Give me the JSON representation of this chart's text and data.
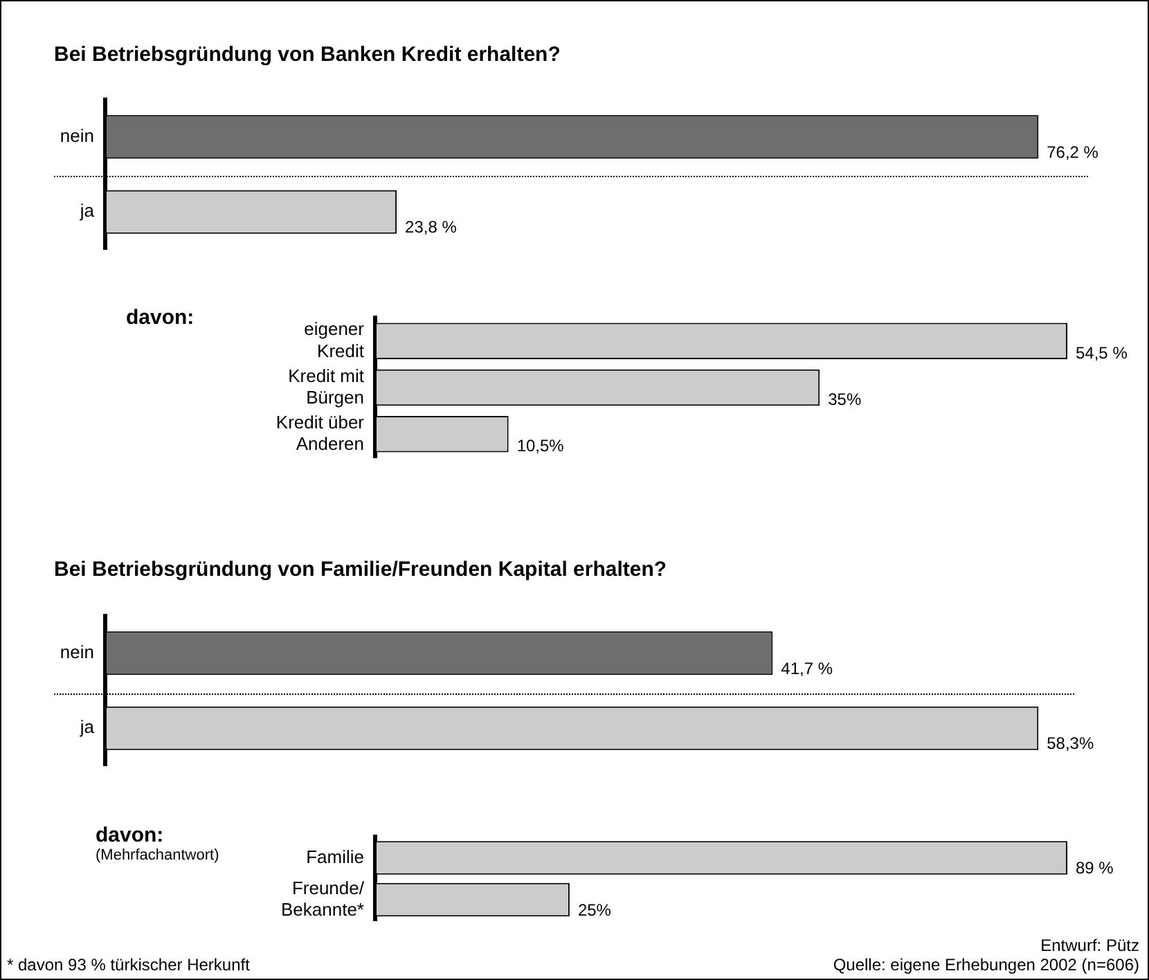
{
  "chart_data": [
    {
      "type": "bar",
      "orientation": "horizontal",
      "title": "Bei Betriebsgründung von Banken Kredit erhalten?",
      "categories": [
        "nein",
        "ja"
      ],
      "values": [
        76.2,
        23.8
      ],
      "colors": [
        "#6e6e6e",
        "#cccccc"
      ],
      "value_labels": [
        "76,2 %",
        "23,8 %"
      ]
    },
    {
      "type": "bar",
      "orientation": "horizontal",
      "ylabel": "davon:",
      "categories": [
        "eigener\nKredit",
        "Kredit mit\nBürgen",
        "Kredit über\nAnderen"
      ],
      "values": [
        54.5,
        35,
        10.5
      ],
      "colors": [
        "#cccccc",
        "#cccccc",
        "#cccccc"
      ],
      "value_labels": [
        "54,5 %",
        "35%",
        "10,5%"
      ]
    },
    {
      "type": "bar",
      "orientation": "horizontal",
      "title": "Bei Betriebsgründung von Familie/Freunden Kapital erhalten?",
      "categories": [
        "nein",
        "ja"
      ],
      "values": [
        41.7,
        58.3
      ],
      "colors": [
        "#6e6e6e",
        "#cccccc"
      ],
      "value_labels": [
        "41,7 %",
        "58,3%"
      ]
    },
    {
      "type": "bar",
      "orientation": "horizontal",
      "ylabel": "davon:",
      "categories": [
        "Familie",
        "Freunde/\nBekannte*"
      ],
      "values": [
        89,
        25
      ],
      "colors": [
        "#cccccc",
        "#cccccc"
      ],
      "value_labels": [
        "89 %",
        "25%"
      ],
      "annotations": [
        "(Mehrfachantwort)",
        "* davon 93 % türkischer Herkunft",
        "Entwurf: Pütz",
        "Quelle: eigene Erhebungen 2002 (n=606)"
      ]
    }
  ]
}
